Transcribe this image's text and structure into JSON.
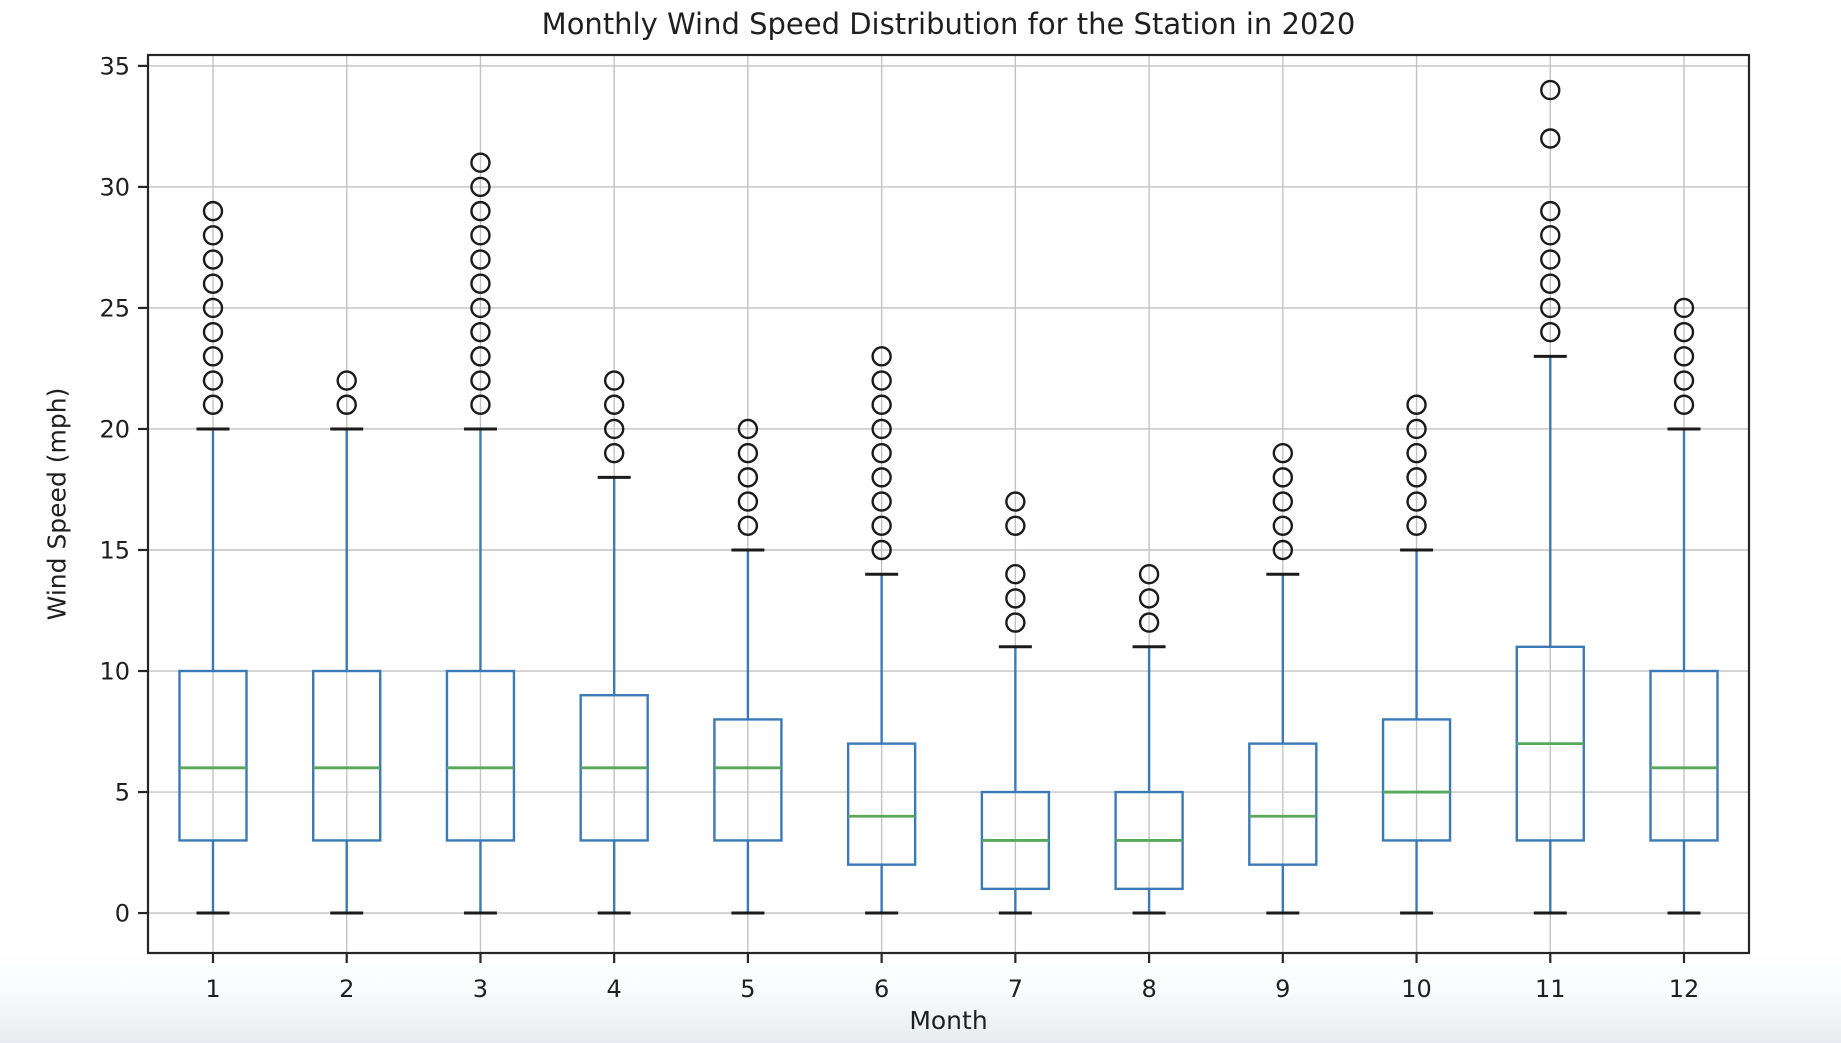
{
  "page": {
    "background": "#ffffff",
    "footer_fade": "#e9ecf0"
  },
  "chart_data": {
    "type": "boxplot",
    "title": "Monthly Wind Speed Distribution for the Station in 2020",
    "xlabel": "Month",
    "ylabel": "Wind Speed (mph)",
    "categories": [
      "1",
      "2",
      "3",
      "4",
      "5",
      "6",
      "7",
      "8",
      "9",
      "10",
      "11",
      "12"
    ],
    "yticks": [
      0,
      5,
      10,
      15,
      20,
      25,
      30,
      35
    ],
    "ylim": [
      -1.65,
      35.45
    ],
    "xlim": [
      0.514,
      12.486
    ],
    "grid": true,
    "legend": "none",
    "boxes": [
      {
        "label": "1",
        "whisker_low": 0,
        "q1": 3,
        "median": 6,
        "q3": 10,
        "whisker_high": 20,
        "outliers": [
          21,
          22,
          23,
          24,
          25,
          26,
          27,
          28,
          29
        ]
      },
      {
        "label": "2",
        "whisker_low": 0,
        "q1": 3,
        "median": 6,
        "q3": 10,
        "whisker_high": 20,
        "outliers": [
          21,
          22
        ]
      },
      {
        "label": "3",
        "whisker_low": 0,
        "q1": 3,
        "median": 6,
        "q3": 10,
        "whisker_high": 20,
        "outliers": [
          21,
          22,
          23,
          24,
          25,
          26,
          27,
          28,
          29,
          30,
          31
        ]
      },
      {
        "label": "4",
        "whisker_low": 0,
        "q1": 3,
        "median": 6,
        "q3": 9,
        "whisker_high": 18,
        "outliers": [
          19,
          20,
          21,
          22
        ]
      },
      {
        "label": "5",
        "whisker_low": 0,
        "q1": 3,
        "median": 6,
        "q3": 8,
        "whisker_high": 15,
        "outliers": [
          16,
          17,
          18,
          19,
          20
        ]
      },
      {
        "label": "6",
        "whisker_low": 0,
        "q1": 2,
        "median": 4,
        "q3": 7,
        "whisker_high": 14,
        "outliers": [
          15,
          16,
          17,
          18,
          19,
          20,
          21,
          22,
          23
        ]
      },
      {
        "label": "7",
        "whisker_low": 0,
        "q1": 1,
        "median": 3,
        "q3": 5,
        "whisker_high": 11,
        "outliers": [
          12,
          13,
          14,
          16,
          17
        ]
      },
      {
        "label": "8",
        "whisker_low": 0,
        "q1": 1,
        "median": 3,
        "q3": 5,
        "whisker_high": 11,
        "outliers": [
          12,
          13,
          14
        ]
      },
      {
        "label": "9",
        "whisker_low": 0,
        "q1": 2,
        "median": 4,
        "q3": 7,
        "whisker_high": 14,
        "outliers": [
          15,
          16,
          17,
          18,
          19
        ]
      },
      {
        "label": "10",
        "whisker_low": 0,
        "q1": 3,
        "median": 5,
        "q3": 8,
        "whisker_high": 15,
        "outliers": [
          16,
          17,
          18,
          19,
          20,
          21
        ]
      },
      {
        "label": "11",
        "whisker_low": 0,
        "q1": 3,
        "median": 7,
        "q3": 11,
        "whisker_high": 23,
        "outliers": [
          24,
          25,
          26,
          27,
          28,
          29,
          32,
          34
        ]
      },
      {
        "label": "12",
        "whisker_low": 0,
        "q1": 3,
        "median": 6,
        "q3": 10,
        "whisker_high": 20,
        "outliers": [
          21,
          22,
          23,
          24,
          25
        ]
      }
    ],
    "colors": {
      "box": "#3c79b7",
      "whisker": "#3c79b7",
      "median": "#57a85a",
      "cap": "#1b1b1b",
      "flier": "#1b1b1b",
      "grid": "#c2c2c2",
      "spine": "#262626",
      "text": "#1f1f1f"
    }
  }
}
